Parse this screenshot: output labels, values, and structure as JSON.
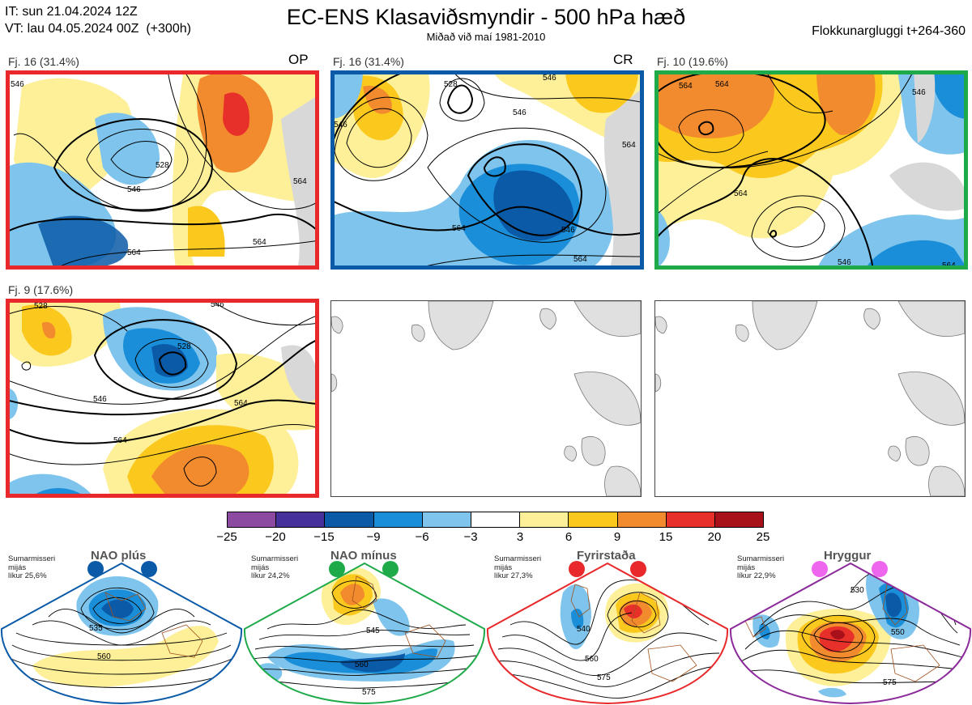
{
  "header": {
    "init_time": "IT: sun 21.04.2024 12Z",
    "valid_time": "VT: lau 04.05.2024 00Z  (+300h)",
    "title": "EC-ENS Klasaviðsmyndir - 500 hPa hæð",
    "subtitle": "Miðað við maí 1981-2010",
    "window": "Flokkunargluggi t+264-360"
  },
  "clusters": [
    {
      "label": "Fj. 16 (31.4%)",
      "tag": "OP",
      "border_color": "#e8282a",
      "contours": [
        "546",
        "528",
        "546",
        "564",
        "564",
        "564"
      ]
    },
    {
      "label": "Fj. 16 (31.4%)",
      "tag": "CR",
      "border_color": "#0a5aa8",
      "contours": [
        "546",
        "528",
        "546",
        "546",
        "564",
        "546",
        "564",
        "564"
      ]
    },
    {
      "label": "Fj. 10 (19.6%)",
      "tag": "",
      "border_color": "#1faa4a",
      "contours": [
        "564",
        "564",
        "546",
        "564",
        "546",
        "564"
      ]
    },
    {
      "label": "Fj. 9 (17.6%)",
      "tag": "",
      "border_color": "#e8282a",
      "contours": [
        "528",
        "546",
        "528",
        "546",
        "564",
        "564"
      ]
    }
  ],
  "colorbar": {
    "ticks": [
      "−25",
      "−20",
      "−15",
      "−9",
      "−6",
      "−3",
      "3",
      "6",
      "9",
      "15",
      "20",
      "25"
    ],
    "colors": [
      "#8c4aa0",
      "#46309a",
      "#0a5aa8",
      "#1a8ed8",
      "#7ec4ec",
      "#ffffff",
      "#fdf098",
      "#fbc81e",
      "#f28a2e",
      "#e8302a",
      "#a8101a"
    ]
  },
  "regimes": [
    {
      "name": "NAO plús",
      "info": [
        "Sumarmisseri",
        "mijás",
        "líkur 25,6%"
      ],
      "color": "#0a5aa8",
      "labels": [
        "535",
        "560"
      ]
    },
    {
      "name": "NAO mínus",
      "info": [
        "Sumarmisseri",
        "mijás",
        "líkur 24,2%"
      ],
      "color": "#1faa4a",
      "labels": [
        "545",
        "560",
        "575"
      ]
    },
    {
      "name": "Fyrirstaða",
      "info": [
        "Sumarmisseri",
        "mijás",
        "líkur 27,3%"
      ],
      "color": "#e8282a",
      "labels": [
        "540",
        "560",
        "575"
      ]
    },
    {
      "name": "Hryggur",
      "info": [
        "Sumarmisseri",
        "mijás",
        "líkur 22,9%"
      ],
      "color": "#8b2a9a",
      "dot_color": "#ee66ee",
      "labels": [
        "530",
        "550",
        "575"
      ]
    }
  ]
}
